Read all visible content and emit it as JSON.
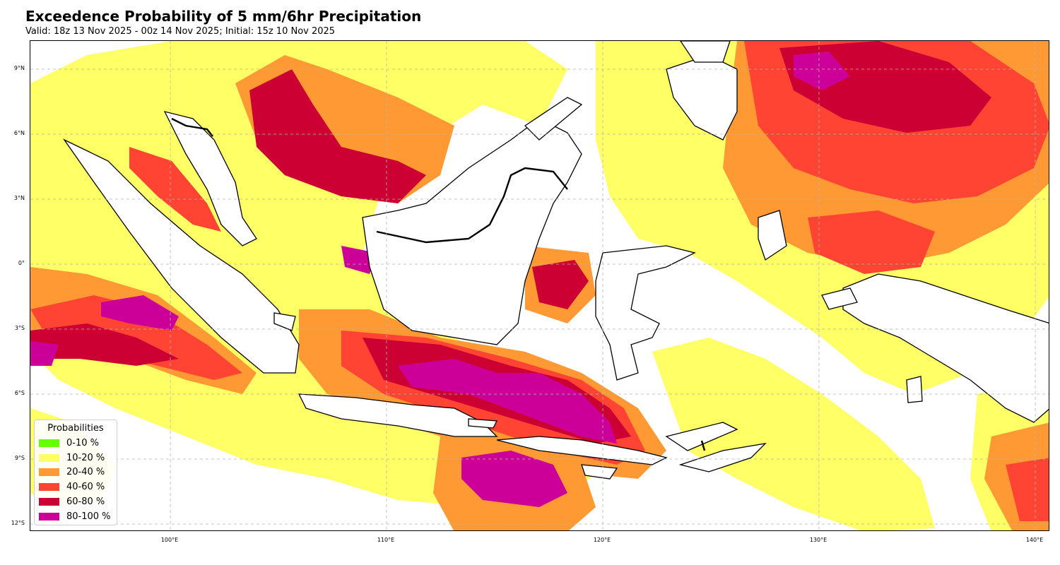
{
  "title": "Exceedence Probability of 5 mm/6hr Precipitation",
  "subtitle": "Valid: 18z 13 Nov 2025 - 00z 14 Nov 2025; Initial: 15z 10 Nov 2025",
  "map": {
    "lat_labels": [
      "9°N",
      "6°N",
      "3°N",
      "0°",
      "3°S",
      "6°S",
      "9°S",
      "12°S"
    ],
    "lon_labels": [
      "100°E",
      "110°E",
      "120°E",
      "130°E",
      "140°E"
    ]
  },
  "legend": {
    "title": "Probabilities",
    "items": [
      {
        "label": "0-10 %",
        "color": "#66ff00"
      },
      {
        "label": "10-20 %",
        "color": "#ffff66"
      },
      {
        "label": "20-40 %",
        "color": "#ff9933"
      },
      {
        "label": "40-60 %",
        "color": "#ff4433"
      },
      {
        "label": "60-80 %",
        "color": "#cc0033"
      },
      {
        "label": "80-100 %",
        "color": "#cc0099"
      }
    ]
  }
}
